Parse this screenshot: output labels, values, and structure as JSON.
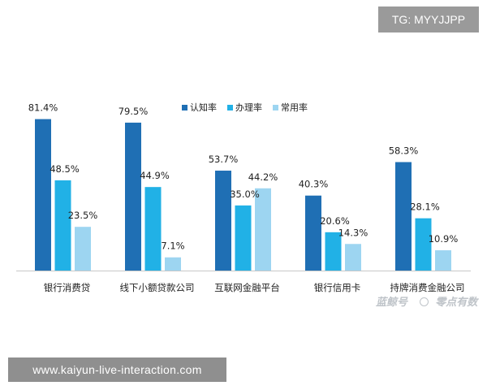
{
  "badge": "TG: MYYJJPP",
  "banner": "www.kaiyun-live-interaction.com",
  "watermark": {
    "brand": "蓝鲸号",
    "text": "零点有数"
  },
  "chart_data": {
    "type": "bar",
    "categories": [
      "银行消费贷",
      "线下小额贷款公司",
      "互联网金融平台",
      "银行信用卡",
      "持牌消费金融公司"
    ],
    "series": [
      {
        "name": "认知率",
        "color": "#1f6fb4",
        "values": [
          81.4,
          79.5,
          53.7,
          40.3,
          58.3
        ],
        "labels": [
          "81.4%",
          "79.5%",
          "53.7%",
          "40.3%",
          "58.3%"
        ]
      },
      {
        "name": "办理率",
        "color": "#21b1e6",
        "values": [
          48.5,
          44.9,
          35.0,
          20.6,
          28.1
        ],
        "labels": [
          "48.5%",
          "44.9%",
          "35.0%",
          "20.6%",
          "28.1%"
        ]
      },
      {
        "name": "常用率",
        "color": "#9dd5f1",
        "values": [
          23.5,
          7.1,
          44.2,
          14.3,
          10.9
        ],
        "labels": [
          "23.5%",
          "7.1%",
          "44.2%",
          "14.3%",
          "10.9%"
        ]
      }
    ],
    "ylim": [
      0,
      100
    ],
    "grid": false,
    "legend_position": "top-right",
    "axis_color": "#c8c8c8"
  }
}
